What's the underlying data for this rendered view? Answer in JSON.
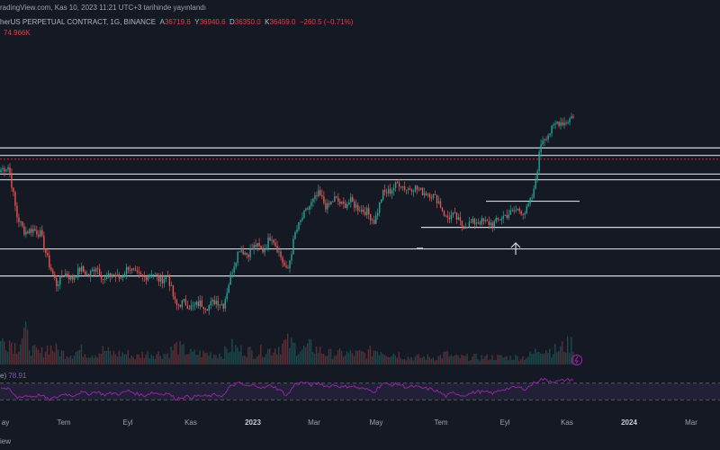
{
  "header": {
    "published": "radingView.com, Kas 10, 2023 11:21 UTC+3 tarihinde yayınlandı",
    "symbol": "herUS PERPETUAL CONTRACT, 1G, BINANCE",
    "o_label": "A",
    "o_val": "36719.6",
    "h_label": "Y",
    "h_val": "36940.6",
    "l_label": "D",
    "l_val": "36350.0",
    "c_label": "K",
    "c_val": "36459.0",
    "change": "−260.5 (−0.71%)",
    "volume": "74.966K"
  },
  "rsi": {
    "label": "e)",
    "value": "78.91",
    "levels": [
      70,
      30
    ]
  },
  "footer": {
    "text": "iew"
  },
  "colors": {
    "up": "#26a69a",
    "down": "#ef5350",
    "background": "#151924",
    "rsi": "#9c27b0",
    "level_line": "#d1d4dc",
    "price_line": "#f23645"
  },
  "chart_data": {
    "type": "candlestick",
    "x_ticks": [
      "ay",
      "Tem",
      "Eyl",
      "Kas",
      "2023",
      "Mar",
      "May",
      "Tem",
      "Eyl",
      "Kas",
      "2024",
      "Mar"
    ],
    "x_ticks_bold": [
      "2023",
      "2024"
    ],
    "close_path": [
      31.5,
      31.8,
      26.5,
      24.8,
      25.1,
      24.6,
      21.5,
      19.2,
      20.4,
      19.8,
      20.9,
      20.1,
      21.2,
      19.6,
      20.3,
      19.8,
      21.1,
      20.2,
      19.9,
      20.5,
      19.6,
      20.1,
      16.9,
      17.3,
      16.7,
      17.2,
      16.8,
      17.5,
      17.0,
      20.5,
      23.1,
      22.4,
      23.4,
      22.8,
      24.5,
      22.6,
      20.4,
      24.6,
      26.5,
      27.8,
      28.9,
      27.4,
      28.4,
      27.6,
      28.1,
      27.3,
      27.0,
      25.9,
      28.9,
      29.2,
      30.1,
      29.4,
      29.6,
      29.1,
      28.9,
      28.2,
      26.3,
      26.6,
      25.5,
      25.7,
      26.0,
      25.8,
      25.7,
      26.4,
      26.8,
      27.2,
      26.9,
      28.9,
      34.7,
      35.4,
      36.6,
      36.5,
      37.3
    ],
    "volume_profile": [
      0.6,
      0.7,
      0.5,
      0.9,
      0.4,
      0.3,
      0.5,
      0.4,
      0.3,
      0.3,
      0.4,
      0.3,
      0.3,
      0.4,
      0.3,
      0.3,
      0.3,
      0.2,
      0.3,
      0.3,
      0.3,
      0.3,
      0.5,
      0.4,
      0.3,
      0.3,
      0.3,
      0.3,
      0.3,
      0.5,
      0.4,
      0.4,
      0.3,
      0.4,
      0.4,
      0.5,
      0.6,
      0.5,
      0.4,
      0.5,
      0.4,
      0.3,
      0.3,
      0.3,
      0.3,
      0.3,
      0.3,
      0.4,
      0.4,
      0.3,
      0.3,
      0.2,
      0.2,
      0.2,
      0.2,
      0.2,
      0.3,
      0.2,
      0.2,
      0.2,
      0.2,
      0.2,
      0.2,
      0.2,
      0.2,
      0.2,
      0.2,
      0.3,
      0.5,
      0.4,
      0.4,
      0.5,
      0.6
    ],
    "rsi_path": [
      60,
      55,
      35,
      40,
      38,
      42,
      30,
      36,
      45,
      40,
      48,
      44,
      50,
      42,
      46,
      44,
      52,
      45,
      40,
      48,
      44,
      46,
      32,
      38,
      36,
      40,
      38,
      42,
      40,
      65,
      70,
      62,
      66,
      58,
      65,
      55,
      40,
      68,
      72,
      66,
      70,
      62,
      66,
      60,
      64,
      58,
      55,
      50,
      70,
      66,
      68,
      60,
      62,
      58,
      56,
      50,
      38,
      48,
      40,
      45,
      50,
      48,
      46,
      55,
      58,
      60,
      56,
      70,
      80,
      76,
      74,
      78,
      78.9
    ],
    "levels": [
      33.8,
      33.0,
      31.0,
      30.4,
      23.0,
      20.1
    ],
    "segment_levels": [
      {
        "y": 25.3,
        "from": 0.585,
        "to": 1.0
      },
      {
        "y": 28.1,
        "from": 0.675,
        "to": 0.805
      }
    ],
    "last_price": 36459.0,
    "last_price_line": 32.6,
    "y_range": [
      14,
      40
    ]
  }
}
